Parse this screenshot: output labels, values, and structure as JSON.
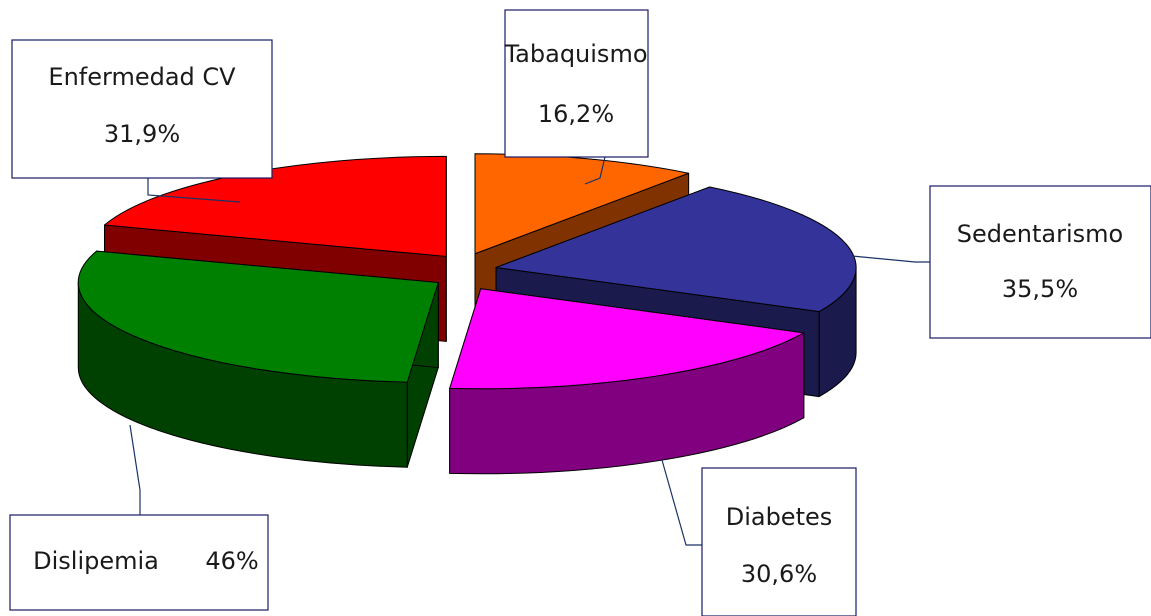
{
  "chart_data": {
    "type": "pie3d",
    "categories": [
      "Tabaquismo",
      "Sedentarismo",
      "Diabetes",
      "Dislipemia",
      "Enfermedad CV"
    ],
    "values": [
      16.2,
      35.5,
      30.6,
      46,
      31.9
    ],
    "value_labels": [
      "16,2%",
      "35,5%",
      "30,6%",
      "46%",
      "31,9%"
    ],
    "colors": [
      "#ff6600",
      "#333399",
      "#ff00ff",
      "#008000",
      "#ff0000"
    ]
  }
}
